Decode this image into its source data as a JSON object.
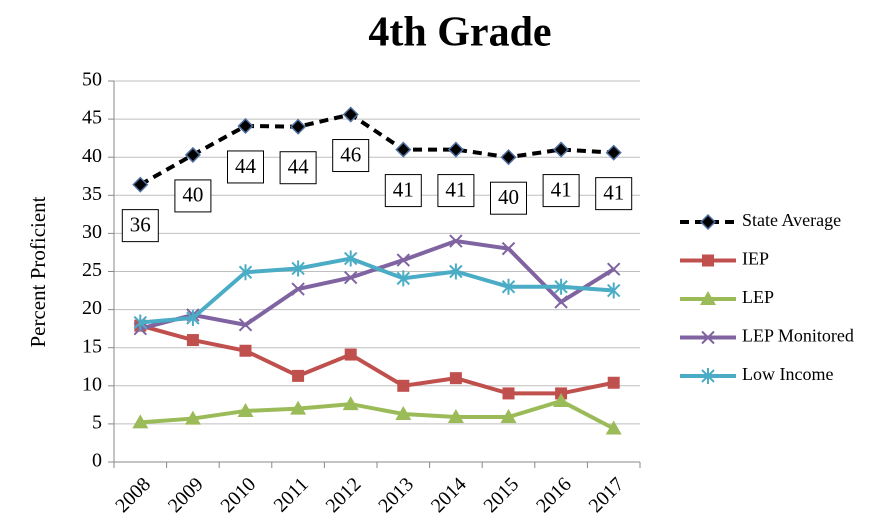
{
  "chart_data": {
    "type": "line",
    "title": "4th Grade",
    "y_label": "Percent Proficient",
    "categories": [
      "2008",
      "2009",
      "2010",
      "2011",
      "2012",
      "2013",
      "2014",
      "2015",
      "2016",
      "2017"
    ],
    "ylim": [
      0,
      50
    ],
    "yticks": [
      0,
      5,
      10,
      15,
      20,
      25,
      30,
      35,
      40,
      45,
      50
    ],
    "grid": true,
    "legend": "right",
    "series": [
      {
        "name": "State Average",
        "color": "#000000",
        "marker": "diamond",
        "dashed": true,
        "values": [
          36.4,
          40.3,
          44.1,
          44,
          45.6,
          41,
          41,
          40,
          41,
          40.6
        ],
        "value_labels": [
          "36",
          "40",
          "44",
          "44",
          "46",
          "41",
          "41",
          "40",
          "41",
          "41"
        ]
      },
      {
        "name": "IEP",
        "color": "#c0504d",
        "marker": "square",
        "values": [
          17.9,
          16,
          14.6,
          11.3,
          14.1,
          10,
          11,
          9,
          9,
          10.4
        ]
      },
      {
        "name": "LEP",
        "color": "#9bbb59",
        "marker": "triangle",
        "values": [
          5.2,
          5.7,
          6.7,
          7,
          7.6,
          6.3,
          5.9,
          5.9,
          8,
          4.4
        ]
      },
      {
        "name": "LEP Monitored",
        "color": "#8064a2",
        "marker": "x",
        "values": [
          17.5,
          19.3,
          18,
          22.7,
          24.2,
          26.5,
          29,
          28,
          21,
          25.3
        ]
      },
      {
        "name": "Low Income",
        "color": "#4bacc6",
        "marker": "star",
        "values": [
          18.3,
          18.9,
          24.9,
          25.4,
          26.7,
          24.1,
          25,
          23,
          23,
          22.5
        ]
      }
    ]
  }
}
